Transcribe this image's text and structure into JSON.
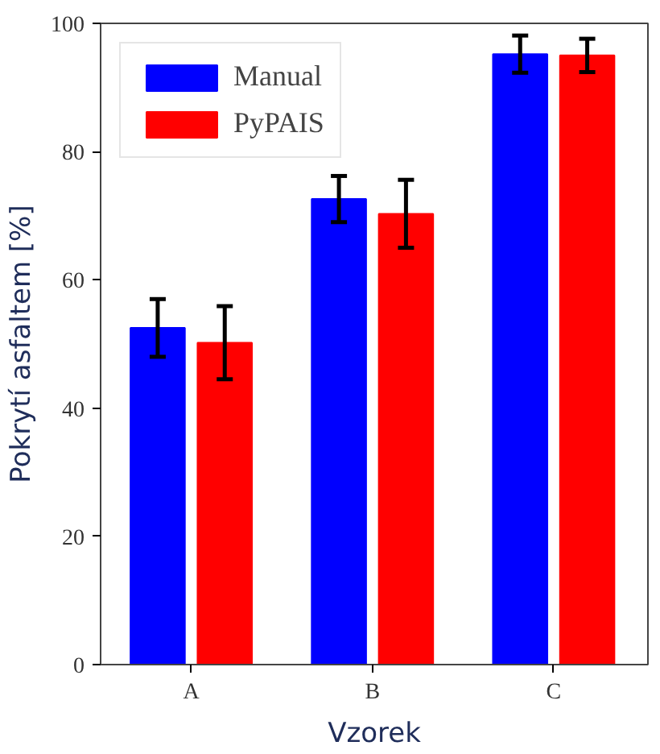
{
  "chart_data": {
    "type": "bar",
    "xlabel": "Vzorek",
    "ylabel": "Pokrytí asfaltem [%]",
    "categories": [
      "A",
      "B",
      "C"
    ],
    "series": [
      {
        "name": "Manual",
        "color": "#0000ff",
        "values": [
          52.5,
          72.6,
          95.2
        ],
        "errors": [
          4.5,
          3.6,
          2.9
        ]
      },
      {
        "name": "PyPAIS",
        "color": "#ff0000",
        "values": [
          50.2,
          70.3,
          95.0
        ],
        "errors": [
          5.7,
          5.3,
          2.6
        ]
      }
    ],
    "ylim": [
      0,
      100
    ],
    "yticks": [
      0,
      20,
      40,
      60,
      80,
      100
    ],
    "grid": false,
    "legend": "top left"
  }
}
